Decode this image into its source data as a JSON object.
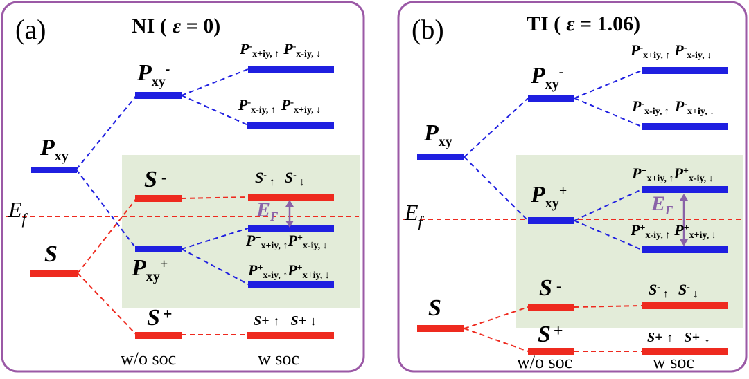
{
  "colors": {
    "frame": "#9b59a6",
    "blue": "#1f1fe0",
    "red": "#ee2a1f",
    "highlight": "#e3ecd9",
    "arrow": "#8a62a8",
    "text": "#000000"
  },
  "panel_a": {
    "label": "(a)",
    "title_prefix": "NI (",
    "title_eps": "ε",
    "title_value": " = 0)",
    "levels": {
      "pxy_main": "P",
      "pxy_main_sub": "xy",
      "s_main": "S",
      "pxy_minus": "P",
      "pxy_minus_sub": "xy",
      "pxy_minus_sup": "-",
      "pxy_plus": "P",
      "pxy_plus_sub": "xy",
      "pxy_plus_sup": "+",
      "s_minus": "S",
      "s_minus_sup": "-",
      "s_plus": "S",
      "s_plus_sup": "+"
    },
    "ef": "E",
    "ef_sub": "f",
    "gap_label": "E",
    "gap_sub": "Γ",
    "soc_levels": {
      "p_minus_top": {
        "a": "P",
        "a_sup": "-",
        "a_sub": "x+iy, ↑",
        "b": "P",
        "b_sup": "-",
        "b_sub": "x-iy, ↓"
      },
      "p_minus_bottom": {
        "a": "P",
        "a_sup": "-",
        "a_sub": "x-iy, ↑",
        "b": "P",
        "b_sup": "-",
        "b_sub": "x+iy, ↓"
      },
      "s_minus": {
        "a": "S",
        "a_sup": "-",
        "a_arrow": "↑",
        "b": "S",
        "b_sup": "-",
        "b_arrow": "↓"
      },
      "p_plus_top": {
        "a": "P",
        "a_sup": "+",
        "a_sub": "x+iy, ↑",
        "b": "P",
        "b_sup": "+",
        "b_sub": "x-iy, ↓"
      },
      "p_plus_bottom": {
        "a": "P",
        "a_sup": "+",
        "a_sub": "x-iy, ↑",
        "b": "P",
        "b_sup": "+",
        "b_sub": "x+iy, ↓"
      },
      "s_plus": {
        "a": "S+",
        "a_arrow": "↑",
        "b": "S+",
        "b_arrow": "↓"
      }
    },
    "col_wo": "w/o soc",
    "col_w": "w soc"
  },
  "panel_b": {
    "label": "(b)",
    "title_prefix": "TI (",
    "title_eps": "ε",
    "title_value": " = 1.06)",
    "levels": {
      "pxy_main": "P",
      "pxy_main_sub": "xy",
      "s_main": "S",
      "pxy_minus": "P",
      "pxy_minus_sub": "xy",
      "pxy_minus_sup": "-",
      "pxy_plus": "P",
      "pxy_plus_sub": "xy",
      "pxy_plus_sup": "+",
      "s_minus": "S",
      "s_minus_sup": "-",
      "s_plus": "S",
      "s_plus_sup": "+"
    },
    "ef": "E",
    "ef_sub": "f",
    "gap_label": "E",
    "gap_sub": "Γ",
    "soc_levels": {
      "p_minus_top": {
        "a": "P",
        "a_sup": "-",
        "a_sub": "x+iy, ↑",
        "b": "P",
        "b_sup": "-",
        "b_sub": "x-iy, ↓"
      },
      "p_minus_bottom": {
        "a": "P",
        "a_sup": "-",
        "a_sub": "x-iy, ↑",
        "b": "P",
        "b_sup": "-",
        "b_sub": "x+iy, ↓"
      },
      "p_plus_top": {
        "a": "P",
        "a_sup": "+",
        "a_sub": "x+iy, ↑",
        "b": "P",
        "b_sup": "+",
        "b_sub": "x-iy, ↓"
      },
      "p_plus_bottom": {
        "a": "P",
        "a_sup": "+",
        "a_sub": "x-iy, ↑",
        "b": "P",
        "b_sup": "+",
        "b_sub": "x+iy, ↓"
      },
      "s_minus": {
        "a": "S",
        "a_sup": "-",
        "a_arrow": "↑",
        "b": "S",
        "b_sup": "-",
        "b_arrow": "↓"
      },
      "s_plus": {
        "a": "S+",
        "a_arrow": "↑",
        "b": "S+",
        "b_arrow": "↓"
      }
    },
    "col_wo": "w/o soc",
    "col_w": "w soc"
  }
}
